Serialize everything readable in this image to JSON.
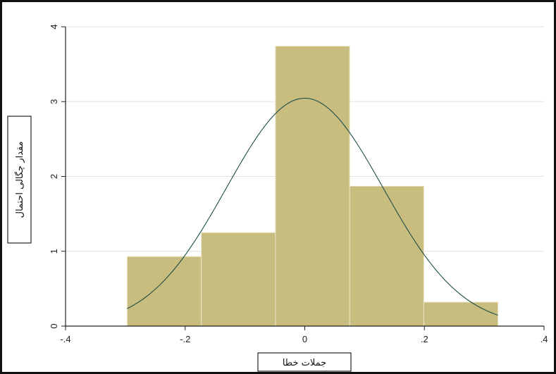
{
  "chart_data": {
    "type": "bar",
    "subtype": "histogram-with-density-curve",
    "xlabel": "جملات خطا",
    "ylabel": "مقدار چگالی احتمال",
    "xlim": [
      -0.4,
      0.4
    ],
    "ylim": [
      0,
      4
    ],
    "x_ticks": [
      -0.4,
      -0.2,
      0,
      0.2,
      0.4
    ],
    "x_tick_labels": [
      "-.4",
      "-.2",
      "0",
      ".2",
      ".4"
    ],
    "y_ticks": [
      0,
      1,
      2,
      3,
      4
    ],
    "y_tick_labels": [
      "0",
      "1",
      "2",
      "3",
      "4"
    ],
    "grid": true,
    "bins": [
      {
        "x0": -0.297,
        "x1": -0.173,
        "value": 0.93
      },
      {
        "x0": -0.173,
        "x1": -0.049,
        "value": 1.25
      },
      {
        "x0": -0.049,
        "x1": 0.075,
        "value": 3.74
      },
      {
        "x0": 0.075,
        "x1": 0.199,
        "value": 1.87
      },
      {
        "x0": 0.199,
        "x1": 0.323,
        "value": 0.32
      }
    ],
    "density_curve": {
      "type": "normal",
      "mean": 0.0,
      "sd": 0.131,
      "x_range": [
        -0.297,
        0.323
      ],
      "peak": 3.05
    },
    "colors": {
      "bar_fill": "#c8bc7f",
      "bar_edge": "#ece6c6",
      "curve": "#1f4e4a",
      "grid": "#e2e2e2",
      "axis": "#222222"
    }
  }
}
